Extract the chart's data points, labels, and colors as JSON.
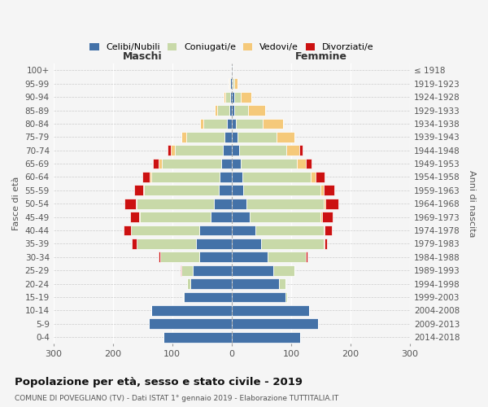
{
  "age_groups": [
    "0-4",
    "5-9",
    "10-14",
    "15-19",
    "20-24",
    "25-29",
    "30-34",
    "35-39",
    "40-44",
    "45-49",
    "50-54",
    "55-59",
    "60-64",
    "65-69",
    "70-74",
    "75-79",
    "80-84",
    "85-89",
    "90-94",
    "95-99",
    "100+"
  ],
  "birth_years": [
    "2014-2018",
    "2009-2013",
    "2004-2008",
    "1999-2003",
    "1994-1998",
    "1989-1993",
    "1984-1988",
    "1979-1983",
    "1974-1978",
    "1969-1973",
    "1964-1968",
    "1959-1963",
    "1954-1958",
    "1949-1953",
    "1944-1948",
    "1939-1943",
    "1934-1938",
    "1929-1933",
    "1924-1928",
    "1919-1923",
    "≤ 1918"
  ],
  "males": {
    "celibe": [
      115,
      140,
      135,
      80,
      70,
      65,
      55,
      60,
      55,
      35,
      30,
      22,
      20,
      18,
      15,
      12,
      8,
      4,
      3,
      2,
      1
    ],
    "coniugato": [
      0,
      0,
      0,
      2,
      5,
      20,
      65,
      100,
      115,
      120,
      130,
      125,
      115,
      100,
      80,
      65,
      40,
      20,
      8,
      2,
      0
    ],
    "vedovo": [
      0,
      0,
      0,
      0,
      0,
      0,
      0,
      0,
      0,
      1,
      1,
      2,
      3,
      5,
      8,
      7,
      5,
      4,
      3,
      1,
      0
    ],
    "divorziato": [
      0,
      0,
      0,
      0,
      0,
      1,
      3,
      8,
      12,
      15,
      20,
      15,
      12,
      10,
      5,
      0,
      0,
      0,
      0,
      0,
      0
    ]
  },
  "females": {
    "nubile": [
      115,
      145,
      130,
      90,
      80,
      70,
      60,
      50,
      40,
      30,
      25,
      20,
      18,
      15,
      12,
      10,
      7,
      5,
      5,
      2,
      1
    ],
    "coniugata": [
      0,
      0,
      0,
      3,
      10,
      35,
      65,
      105,
      115,
      120,
      130,
      130,
      115,
      95,
      80,
      65,
      45,
      22,
      10,
      3,
      1
    ],
    "vedova": [
      0,
      0,
      0,
      0,
      0,
      0,
      0,
      1,
      1,
      2,
      3,
      5,
      8,
      15,
      22,
      30,
      35,
      30,
      18,
      5,
      0
    ],
    "divorziata": [
      0,
      0,
      0,
      0,
      0,
      1,
      3,
      5,
      12,
      18,
      22,
      18,
      15,
      10,
      5,
      0,
      0,
      0,
      0,
      0,
      0
    ]
  },
  "colors": {
    "celibe": "#4472a8",
    "coniugato": "#c8d9a8",
    "vedovo": "#f5c97a",
    "divorziato": "#cc1111"
  },
  "title": "Popolazione per età, sesso e stato civile - 2019",
  "subtitle": "COMUNE DI POVEGLIANO (TV) - Dati ISTAT 1° gennaio 2019 - Elaborazione TUTTITALIA.IT",
  "xlabel_left": "Maschi",
  "xlabel_right": "Femmine",
  "ylabel_left": "Fasce di età",
  "ylabel_right": "Anni di nascita",
  "xlim": 300,
  "legend_labels": [
    "Celibi/Nubili",
    "Coniugati/e",
    "Vedovi/e",
    "Divorziati/e"
  ],
  "background_color": "#f5f5f5"
}
